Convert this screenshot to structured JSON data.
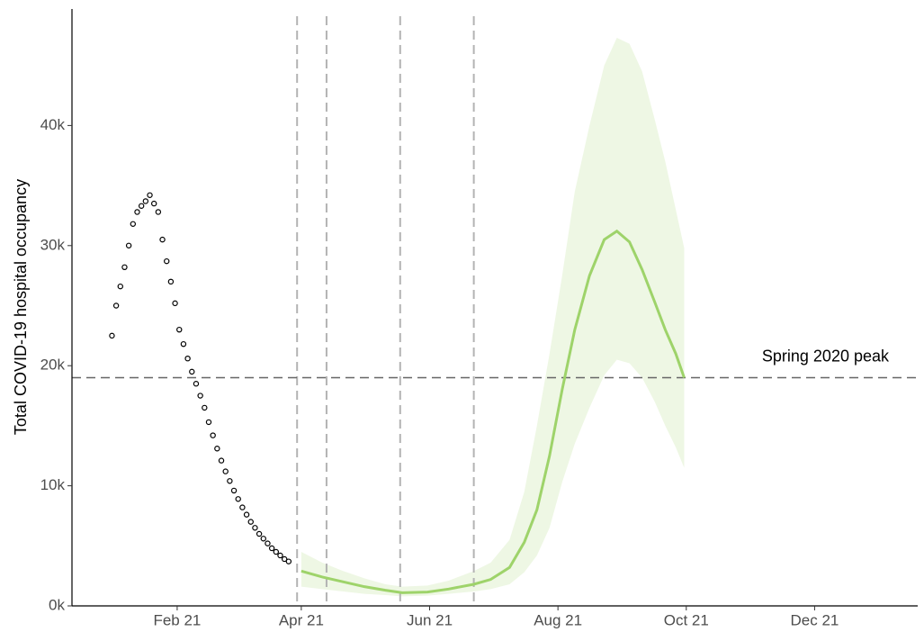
{
  "chart_data": {
    "type": "line",
    "y_label": "Total COVID-19 hospital occupancy",
    "xlim": [
      -19,
      383
    ],
    "xticks": [
      {
        "value": 31,
        "label": "Feb 21"
      },
      {
        "value": 90,
        "label": "Apr 21"
      },
      {
        "value": 151,
        "label": "Jun 21"
      },
      {
        "value": 212,
        "label": "Aug 21"
      },
      {
        "value": 273,
        "label": "Oct 21"
      },
      {
        "value": 334,
        "label": "Dec 21"
      }
    ],
    "ylim": [
      0,
      49700
    ],
    "yticks": [
      {
        "value": 0,
        "label": "0k"
      },
      {
        "value": 10000,
        "label": "10k"
      },
      {
        "value": 20000,
        "label": "20k"
      },
      {
        "value": 30000,
        "label": "30k"
      },
      {
        "value": 40000,
        "label": "40k"
      }
    ],
    "observed": {
      "color": "#000000",
      "x": [
        0,
        2,
        4,
        6,
        8,
        10,
        12,
        14,
        16,
        18,
        20,
        22,
        24,
        26,
        28,
        30,
        32,
        34,
        36,
        38,
        40,
        42,
        44,
        46,
        48,
        50,
        52,
        54,
        56,
        58,
        60,
        62,
        64,
        66,
        68,
        70,
        72,
        74,
        76,
        78,
        80,
        82,
        84
      ],
      "values": [
        22500,
        25000,
        26600,
        28200,
        30000,
        31800,
        32800,
        33300,
        33700,
        34200,
        33500,
        32800,
        30500,
        28700,
        27000,
        25200,
        23000,
        21800,
        20600,
        19500,
        18500,
        17500,
        16500,
        15300,
        14200,
        13100,
        12100,
        11200,
        10400,
        9600,
        8900,
        8200,
        7600,
        7000,
        6500,
        6000,
        5600,
        5200,
        4800,
        4500,
        4200,
        3900,
        3700
      ]
    },
    "projection": {
      "color": "#9ed36a",
      "band_color": "#eef7e4",
      "x": [
        90,
        100,
        110,
        120,
        130,
        138,
        150,
        160,
        172,
        180,
        189,
        196,
        202,
        208,
        214,
        220,
        227,
        234,
        240,
        246,
        252,
        258,
        263,
        268,
        272
      ],
      "values": [
        2900,
        2400,
        2000,
        1600,
        1300,
        1100,
        1150,
        1400,
        1800,
        2200,
        3200,
        5300,
        8000,
        12500,
        18000,
        23000,
        27500,
        30500,
        31200,
        30300,
        28000,
        25300,
        23000,
        21000,
        19000
      ],
      "lower": [
        1600,
        1400,
        1200,
        1000,
        900,
        800,
        850,
        1000,
        1200,
        1400,
        1800,
        2800,
        4200,
        6500,
        10300,
        13500,
        16500,
        19200,
        20500,
        20200,
        19000,
        17000,
        15000,
        13200,
        11500
      ],
      "upper": [
        4500,
        3600,
        2900,
        2300,
        1800,
        1600,
        1700,
        2100,
        2900,
        3600,
        5500,
        9500,
        15000,
        21000,
        27500,
        34500,
        40000,
        45000,
        47300,
        46800,
        44500,
        40500,
        37000,
        33000,
        29800
      ]
    },
    "vlines": [
      88,
      102,
      137,
      172
    ],
    "reference": {
      "value": 19000,
      "label": "Spring 2020 peak"
    }
  }
}
